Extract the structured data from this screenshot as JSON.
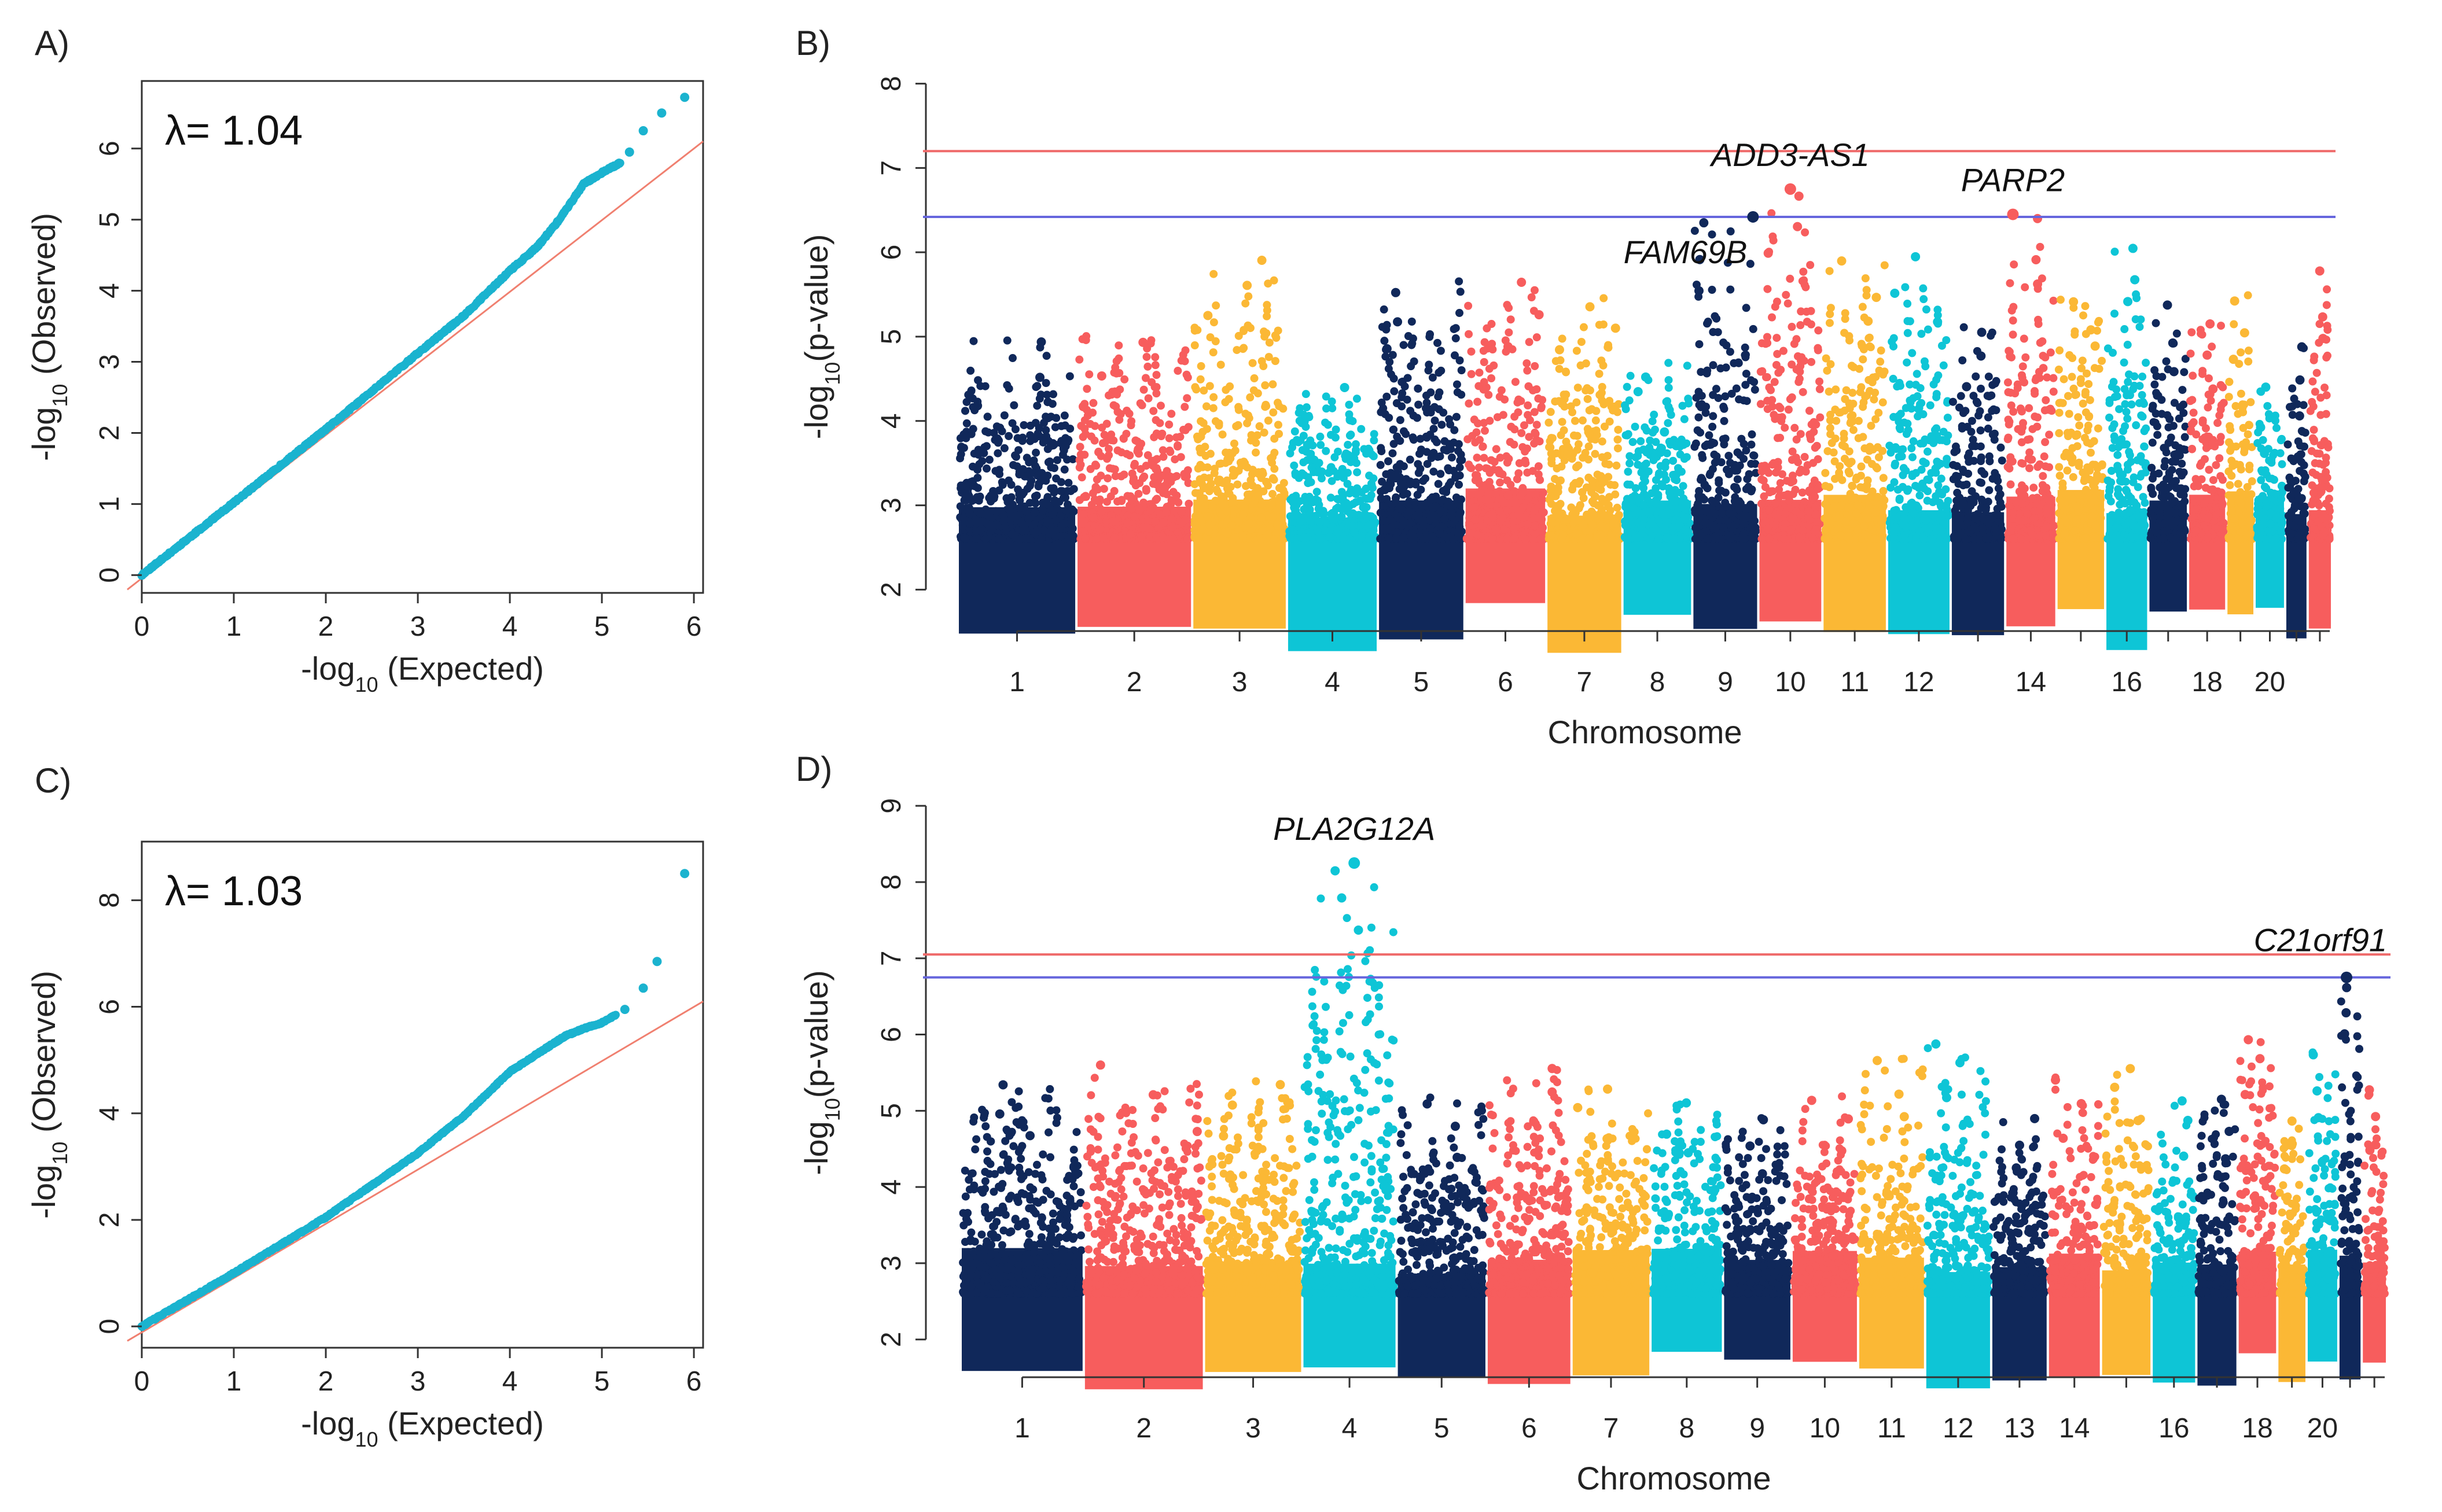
{
  "colors": {
    "navy": "#10285a",
    "salmon": "#f75d5d",
    "gold": "#fbb835",
    "cyan": "#0ec5d6",
    "qq_points": "#1bb3cf",
    "qq_line": "#f08070",
    "bonferroni_line": "#ef6a6a",
    "suggestive_line": "#6666dd"
  },
  "chart_data": [
    {
      "panel": "A)",
      "type": "scatter",
      "title": "A)",
      "annotation": "λ= 1.04",
      "xlabel_prefix": "-log",
      "xlabel_sub": "10",
      "xlabel_suffix": " (Expected)",
      "ylabel_prefix": "-log",
      "ylabel_sub": "10",
      "ylabel_suffix": " (Observed)",
      "xlim": [
        0,
        6.1
      ],
      "ylim": [
        -0.25,
        6.95
      ],
      "xticks": [
        "0",
        "1",
        "2",
        "3",
        "4",
        "5",
        "6"
      ],
      "yticks": [
        "0",
        "1",
        "2",
        "3",
        "4",
        "5",
        "6"
      ],
      "reference_line": {
        "slope": 1,
        "intercept": 0
      },
      "curve": [
        [
          0,
          0
        ],
        [
          1,
          1.02
        ],
        [
          2,
          2.05
        ],
        [
          3,
          3.12
        ],
        [
          3.5,
          3.65
        ],
        [
          4,
          4.28
        ],
        [
          4.3,
          4.62
        ],
        [
          4.55,
          5.02
        ],
        [
          4.8,
          5.5
        ],
        [
          5.0,
          5.66
        ],
        [
          5.2,
          5.8
        ]
      ],
      "tail_points": [
        [
          5.3,
          5.95
        ],
        [
          5.45,
          6.25
        ],
        [
          5.65,
          6.5
        ],
        [
          5.9,
          6.72
        ]
      ]
    },
    {
      "panel": "B)",
      "type": "scatter",
      "title": "B)",
      "xlabel": "Chromosome",
      "ylabel_prefix": "-log",
      "ylabel_sub": "10",
      "ylabel_suffix": "(p-value)",
      "ylim": [
        1.55,
        8.1
      ],
      "yticks": [
        "2",
        "3",
        "4",
        "5",
        "6",
        "7",
        "8"
      ],
      "xtick_labels": [
        "1",
        "2",
        "3",
        "4",
        "5",
        "6",
        "7",
        "8",
        "9",
        "10",
        "11",
        "12",
        "14",
        "16",
        "18",
        "20"
      ],
      "xtick_chromosomes": [
        1,
        2,
        3,
        4,
        5,
        6,
        7,
        8,
        9,
        10,
        11,
        12,
        14,
        16,
        18,
        20
      ],
      "threshold_red": 7.2,
      "threshold_blue": 6.42,
      "chromosome_weights": [
        248,
        242,
        198,
        190,
        181,
        171,
        159,
        146,
        138,
        134,
        135,
        133,
        114,
        107,
        102,
        90,
        83,
        80,
        59,
        64,
        47,
        51
      ],
      "chromosome_peaks": [
        5.05,
        5.05,
        6.05,
        4.5,
        5.7,
        5.7,
        5.55,
        4.7,
        6.42,
        6.75,
        6.0,
        5.95,
        5.15,
        6.42,
        5.6,
        6.15,
        5.45,
        5.2,
        5.5,
        4.45,
        4.9,
        5.78
      ],
      "genes": [
        {
          "label": "ADD3-AS1",
          "chrom": 10,
          "pos": 0.5,
          "y": 6.75,
          "label_pos": "above"
        },
        {
          "label": "PARP2",
          "chrom": 14,
          "pos": 0.15,
          "y": 6.45,
          "label_pos": "above"
        },
        {
          "label": "FAM69B",
          "chrom": 9,
          "pos": 0.92,
          "y": 6.42,
          "label_pos": "below-left"
        }
      ]
    },
    {
      "panel": "C)",
      "type": "scatter",
      "title": "C)",
      "annotation": "λ= 1.03",
      "xlabel_prefix": "-log",
      "xlabel_sub": "10",
      "xlabel_suffix": " (Expected)",
      "ylabel_prefix": "-log",
      "ylabel_sub": "10",
      "ylabel_suffix": " (Observed)",
      "xlim": [
        0,
        6.1
      ],
      "ylim": [
        -0.4,
        9.1
      ],
      "xticks": [
        "0",
        "1",
        "2",
        "3",
        "4",
        "5",
        "6"
      ],
      "yticks": [
        "0",
        "2",
        "4",
        "6",
        "8"
      ],
      "reference_line": {
        "slope": 1,
        "intercept": 0
      },
      "curve": [
        [
          0,
          0
        ],
        [
          1,
          1.0
        ],
        [
          2,
          2.05
        ],
        [
          3,
          3.25
        ],
        [
          3.5,
          3.95
        ],
        [
          4,
          4.78
        ],
        [
          4.3,
          5.12
        ],
        [
          4.6,
          5.45
        ],
        [
          4.85,
          5.62
        ],
        [
          5.0,
          5.7
        ],
        [
          5.15,
          5.85
        ]
      ],
      "tail_points": [
        [
          5.25,
          5.95
        ],
        [
          5.45,
          6.35
        ],
        [
          5.6,
          6.85
        ],
        [
          5.9,
          8.5
        ]
      ]
    },
    {
      "panel": "D)",
      "type": "scatter",
      "title": "D)",
      "xlabel": "Chromosome",
      "ylabel_prefix": "-log",
      "ylabel_sub": "10",
      "ylabel_suffix": "(p-value)",
      "ylim": [
        1.55,
        9.1
      ],
      "yticks": [
        "2",
        "3",
        "4",
        "5",
        "6",
        "7",
        "8",
        "9"
      ],
      "xtick_labels": [
        "1",
        "2",
        "3",
        "4",
        "5",
        "6",
        "7",
        "8",
        "9",
        "10",
        "11",
        "12",
        "13",
        "14",
        "16",
        "18",
        "20"
      ],
      "xtick_chromosomes": [
        1,
        2,
        3,
        4,
        5,
        6,
        7,
        8,
        9,
        10,
        11,
        12,
        13,
        14,
        16,
        18,
        20
      ],
      "threshold_red": 7.05,
      "threshold_blue": 6.75,
      "chromosome_weights": [
        248,
        242,
        198,
        190,
        181,
        171,
        159,
        146,
        138,
        134,
        135,
        133,
        114,
        107,
        102,
        90,
        83,
        80,
        59,
        64,
        47,
        51
      ],
      "chromosome_peaks": [
        5.45,
        5.6,
        5.5,
        8.25,
        5.2,
        5.75,
        5.4,
        5.2,
        4.95,
        5.3,
        5.75,
        6.0,
        5.0,
        5.45,
        5.72,
        5.3,
        5.2,
        6.1,
        5.0,
        5.8,
        6.75,
        5.3
      ],
      "genes": [
        {
          "label": "PLA2G12A",
          "chrom": 4,
          "pos": 0.55,
          "y": 8.25,
          "label_pos": "above"
        },
        {
          "label": "C21orf91",
          "chrom": 21,
          "pos": 0.35,
          "y": 6.75,
          "label_pos": "above-right"
        }
      ]
    }
  ]
}
